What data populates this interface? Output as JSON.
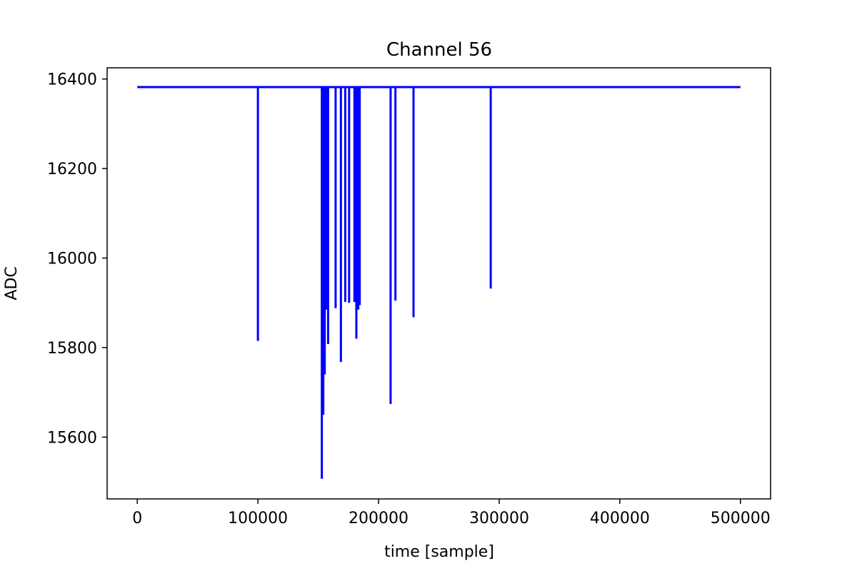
{
  "chart_data": {
    "type": "line",
    "title": "Channel 56",
    "xlabel": "time [sample]",
    "ylabel": "ADC",
    "xlim": [
      -25000,
      525000
    ],
    "ylim": [
      15462,
      16425
    ],
    "xticks": [
      0,
      100000,
      200000,
      300000,
      400000,
      500000
    ],
    "xtick_labels": [
      "0",
      "100000",
      "200000",
      "300000",
      "400000",
      "500000"
    ],
    "yticks": [
      15600,
      15800,
      16000,
      16200,
      16400
    ],
    "ytick_labels": [
      "15600",
      "15800",
      "16000",
      16200,
      "16400"
    ],
    "grid": false,
    "line_color": "#0000ff",
    "baseline": 16382,
    "x_range": [
      0,
      500000
    ],
    "series": [
      {
        "baseline": 16382,
        "x_range": [
          0,
          500000
        ],
        "dips": [
          {
            "x": 100000,
            "min": 15815
          },
          {
            "x": 153000,
            "min": 15507
          },
          {
            "x": 154200,
            "min": 15650
          },
          {
            "x": 155400,
            "min": 15740
          },
          {
            "x": 156600,
            "min": 15885
          },
          {
            "x": 158200,
            "min": 15808
          },
          {
            "x": 164400,
            "min": 15888
          },
          {
            "x": 168800,
            "min": 15768
          },
          {
            "x": 172400,
            "min": 15902
          },
          {
            "x": 175600,
            "min": 15900
          },
          {
            "x": 180000,
            "min": 15902
          },
          {
            "x": 181600,
            "min": 15820
          },
          {
            "x": 183200,
            "min": 15885
          },
          {
            "x": 184400,
            "min": 15895
          },
          {
            "x": 210000,
            "min": 15674
          },
          {
            "x": 214000,
            "min": 15905
          },
          {
            "x": 229000,
            "min": 15868
          },
          {
            "x": 293000,
            "min": 15932
          }
        ]
      }
    ]
  }
}
